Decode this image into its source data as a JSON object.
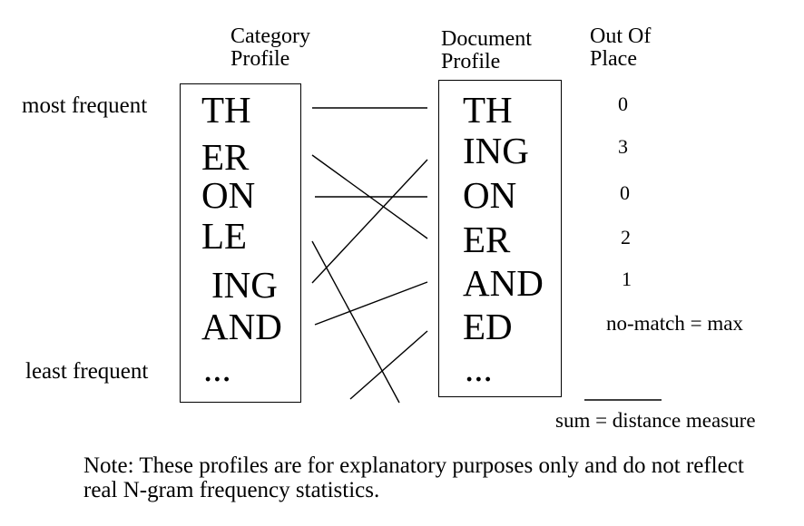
{
  "headers": {
    "category": [
      "Category",
      "Profile"
    ],
    "document": [
      "Document",
      "Profile"
    ],
    "out_of_place": [
      "Out Of",
      "Place"
    ]
  },
  "labels": {
    "most_frequent": "most frequent",
    "least_frequent": "least frequent"
  },
  "category_profile": [
    "TH",
    "ER",
    "ON",
    "LE",
    "ING",
    "AND",
    "..."
  ],
  "document_profile": [
    "TH",
    "ING",
    "ON",
    "ER",
    "AND",
    "ED",
    "..."
  ],
  "out_of_place": [
    "0",
    "3",
    "0",
    "2",
    "1"
  ],
  "no_match": "no-match = max",
  "sum_label": "sum = distance measure",
  "note": "Note: These profiles are for explanatory purposes only and do not reflect real N-gram frequency statistics."
}
